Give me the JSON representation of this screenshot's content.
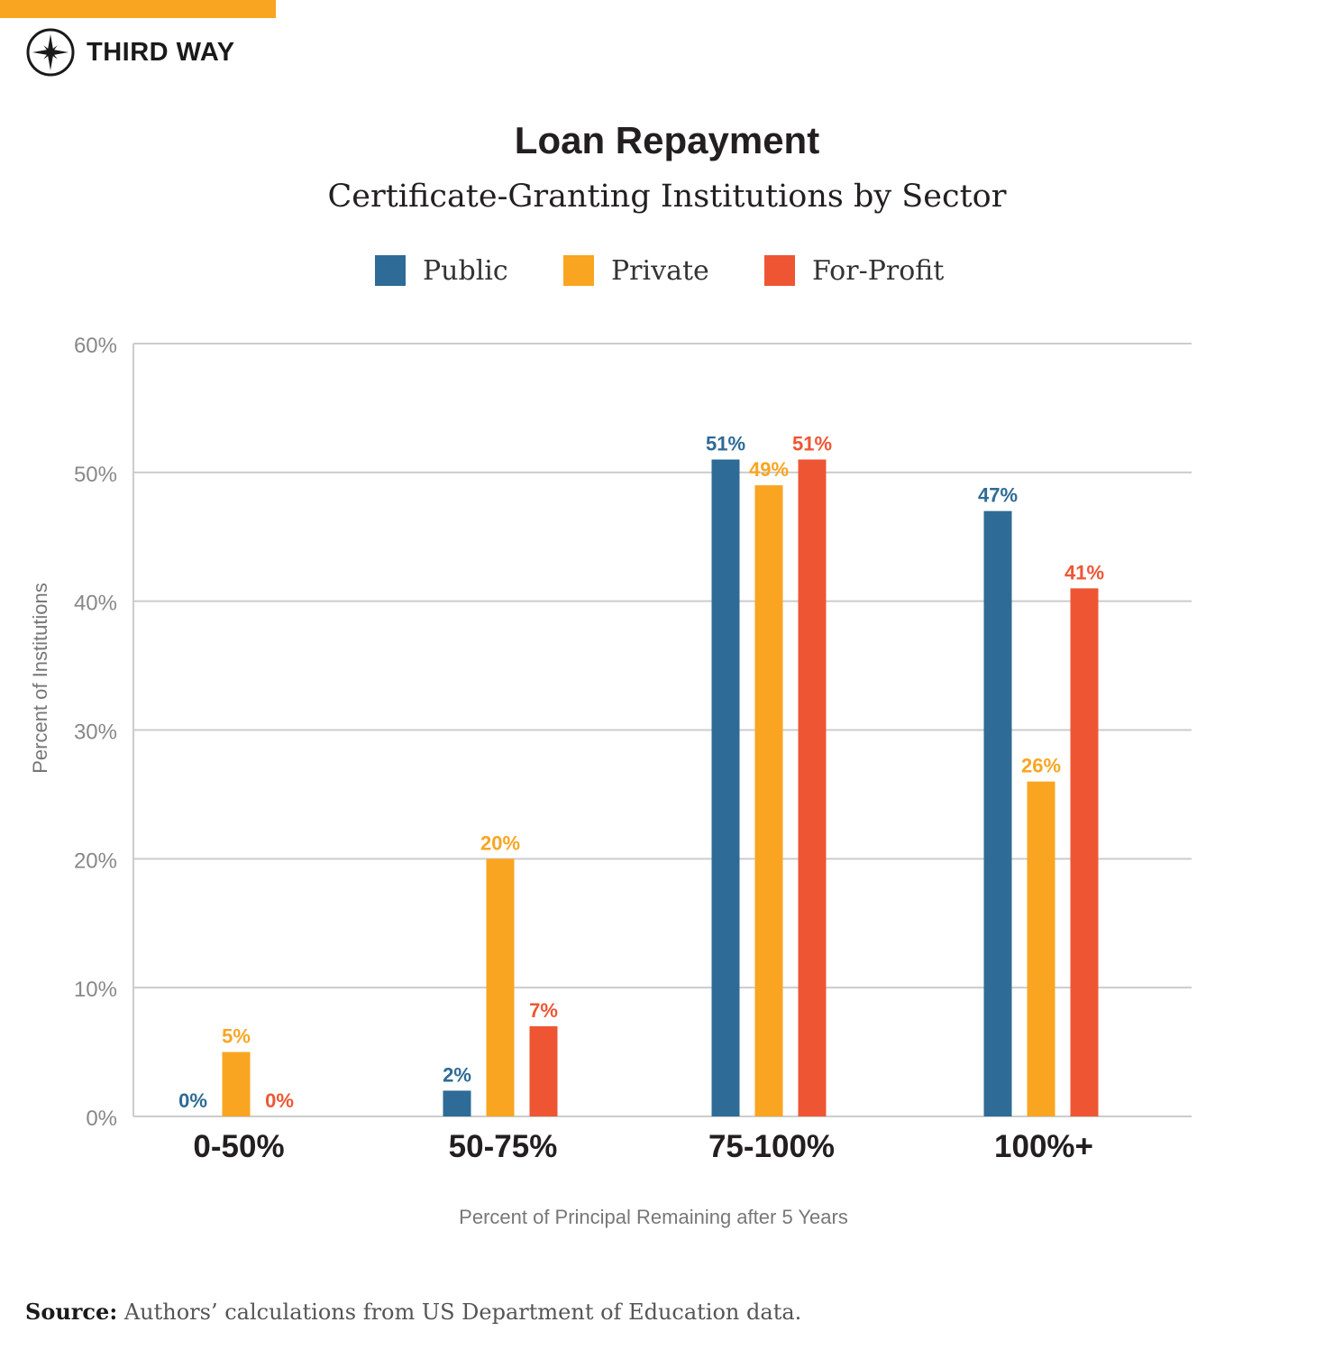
{
  "brand": {
    "name": "THIRD WAY",
    "accent_color": "#f9a521",
    "logo_icon": "compass-star-icon"
  },
  "chart_data": {
    "type": "bar",
    "title": "Loan Repayment",
    "subtitle": "Certificate-Granting Institutions by Sector",
    "xlabel": "Percent of Principal Remaining after 5 Years",
    "ylabel": "Percent of Institutions",
    "ylim": [
      0,
      60
    ],
    "yticks": [
      0,
      10,
      20,
      30,
      40,
      50,
      60
    ],
    "ytick_labels": [
      "0%",
      "10%",
      "20%",
      "30%",
      "40%",
      "50%",
      "60%"
    ],
    "grid": true,
    "legend_position": "top-center",
    "categories": [
      "0-50%",
      "50-75%",
      "75-100%",
      "100%+"
    ],
    "series": [
      {
        "name": "Public",
        "color": "#2e6b96",
        "values": [
          0,
          2,
          51,
          47
        ],
        "labels": [
          "0%",
          "2%",
          "51%",
          "47%"
        ]
      },
      {
        "name": "Private",
        "color": "#f9a521",
        "values": [
          5,
          20,
          49,
          26
        ],
        "labels": [
          "5%",
          "20%",
          "49%",
          "26%"
        ]
      },
      {
        "name": "For-Profit",
        "color": "#ee5633",
        "values": [
          0,
          7,
          51,
          41
        ],
        "labels": [
          "0%",
          "7%",
          "51%",
          "41%"
        ]
      }
    ]
  },
  "source": {
    "label": "Source:",
    "text": "Authors’ calculations from US Department of Education data."
  }
}
